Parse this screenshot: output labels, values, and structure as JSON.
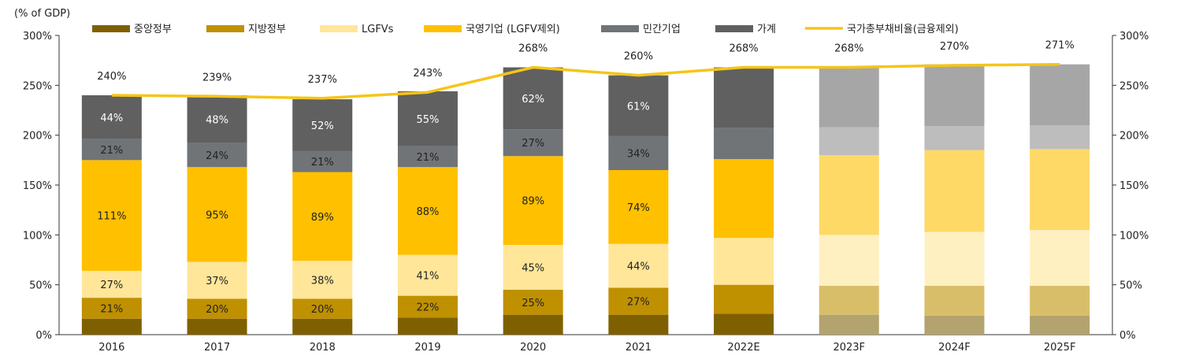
{
  "chart_data": {
    "type": "bar",
    "stacked": true,
    "title": "",
    "ylabel": "(% of GDP)",
    "xlabel": "",
    "ylim": [
      0,
      300
    ],
    "yticks": [
      0,
      50,
      100,
      150,
      200,
      250,
      300
    ],
    "ytick_labels": [
      "0%",
      "50%",
      "100%",
      "150%",
      "200%",
      "250%",
      "300%"
    ],
    "y2ticks": [
      0,
      50,
      100,
      150,
      200,
      250,
      300
    ],
    "y2tick_labels": [
      "0%",
      "50%",
      "100%",
      "150%",
      "200%",
      "250%",
      "300%"
    ],
    "categories": [
      "2016",
      "2017",
      "2018",
      "2019",
      "2020",
      "2021",
      "2022E",
      "2023F",
      "2024F",
      "2025F"
    ],
    "forecast_categories": [
      "2023F",
      "2024F",
      "2025F"
    ],
    "legend_position": "top",
    "series": [
      {
        "name": "중앙정부",
        "color": "#7f6000",
        "forecast_color": "#b3a36e",
        "values": [
          16,
          16,
          16,
          17,
          20,
          20,
          21,
          20,
          19,
          19
        ],
        "labels": [
          "",
          "",
          "",
          "",
          "",
          "",
          "",
          "",
          "",
          ""
        ]
      },
      {
        "name": "지방정부",
        "color": "#bf9000",
        "forecast_color": "#d9be6a",
        "values": [
          21,
          20,
          20,
          22,
          25,
          27,
          29,
          29,
          30,
          30
        ],
        "labels": [
          "21%",
          "20%",
          "20%",
          "22%",
          "25%",
          "27%",
          "",
          "",
          "",
          ""
        ]
      },
      {
        "name": "LGFVs",
        "color": "#ffe699",
        "forecast_color": "#fff0c2",
        "values": [
          27,
          37,
          38,
          41,
          45,
          44,
          47,
          51,
          54,
          56
        ],
        "labels": [
          "27%",
          "37%",
          "38%",
          "41%",
          "45%",
          "44%",
          "",
          "",
          "",
          ""
        ]
      },
      {
        "name": "국영기업 (LGFV제외)",
        "color": "#ffc000",
        "forecast_color": "#ffd966",
        "values": [
          111,
          95,
          89,
          88,
          89,
          74,
          79,
          80,
          82,
          81
        ],
        "labels": [
          "111%",
          "95%",
          "89%",
          "88%",
          "89%",
          "74%",
          "",
          "",
          "",
          ""
        ]
      },
      {
        "name": "민간기업",
        "color": "#717477",
        "forecast_color": "#bdbdbd",
        "values": [
          21,
          24,
          21,
          21,
          27,
          34,
          31,
          28,
          24,
          24
        ],
        "labels": [
          "21%",
          "24%",
          "21%",
          "21%",
          "27%",
          "34%",
          "",
          "",
          "",
          ""
        ]
      },
      {
        "name": "가계",
        "color": "#606060",
        "forecast_color": "#a6a6a6",
        "values": [
          44,
          48,
          52,
          55,
          62,
          61,
          61,
          61,
          62,
          61
        ],
        "labels": [
          "44%",
          "48%",
          "52%",
          "55%",
          "62%",
          "61%",
          "",
          "",
          "",
          ""
        ]
      }
    ],
    "line_series": {
      "name": "국가총부채비율(금융제외)",
      "color": "#f5c518",
      "values": [
        240,
        239,
        237,
        243,
        268,
        260,
        268,
        268,
        270,
        271
      ],
      "labels": [
        "240%",
        "239%",
        "237%",
        "243%",
        "268%",
        "260%",
        "268%",
        "268%",
        "270%",
        "271%"
      ]
    }
  }
}
